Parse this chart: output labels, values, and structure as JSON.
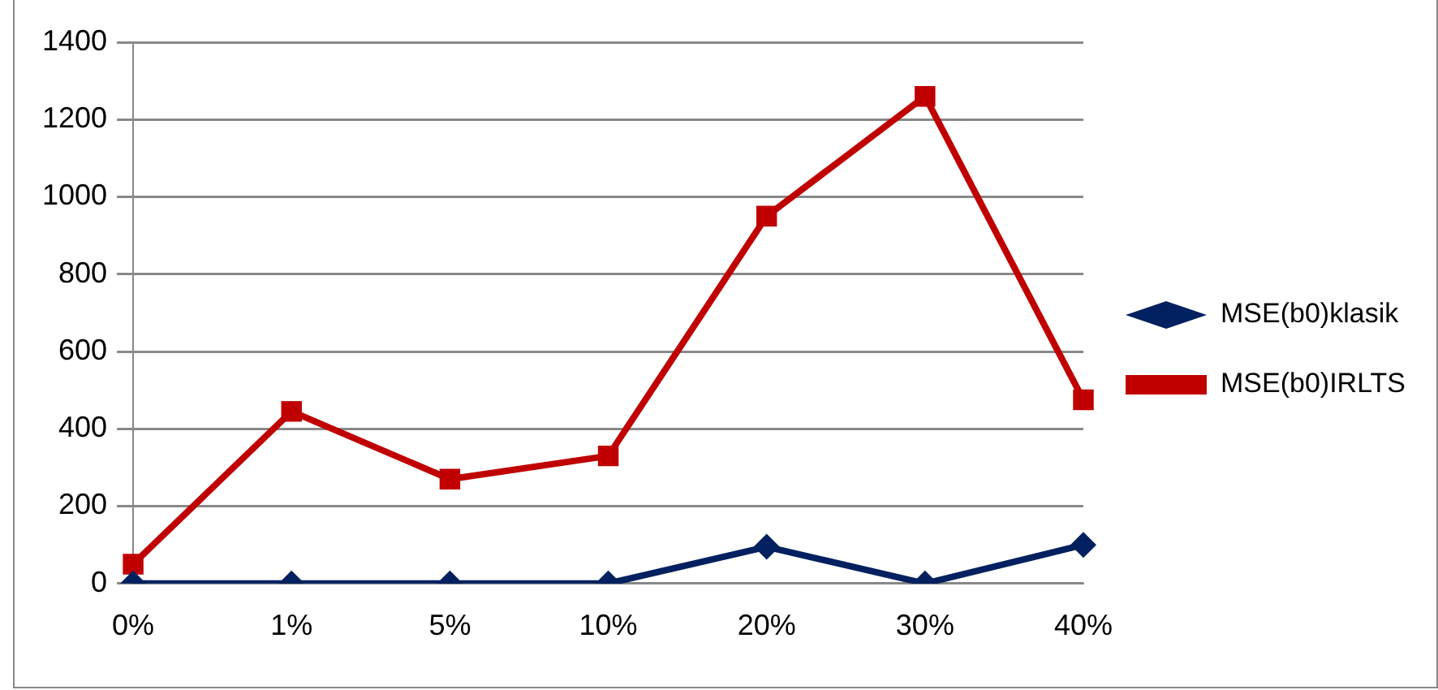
{
  "chart_data": {
    "type": "line",
    "categories": [
      "0%",
      "1%",
      "5%",
      "10%",
      "20%",
      "30%",
      "40%"
    ],
    "series": [
      {
        "name": "MSE(b0)klasik",
        "color": "#002060",
        "values": [
          0,
          0,
          0,
          0,
          95,
          0,
          100
        ],
        "marker": "diamond"
      },
      {
        "name": "MSE(b0)IRLTS",
        "color": "#c00000",
        "values": [
          50,
          445,
          270,
          330,
          950,
          1260,
          475
        ],
        "marker": "square"
      }
    ],
    "ylim": [
      0,
      1400
    ],
    "yticks": [
      0,
      200,
      400,
      600,
      800,
      1000,
      1200,
      1400
    ],
    "grid": "y",
    "legend": "right",
    "line_style": "solid"
  }
}
